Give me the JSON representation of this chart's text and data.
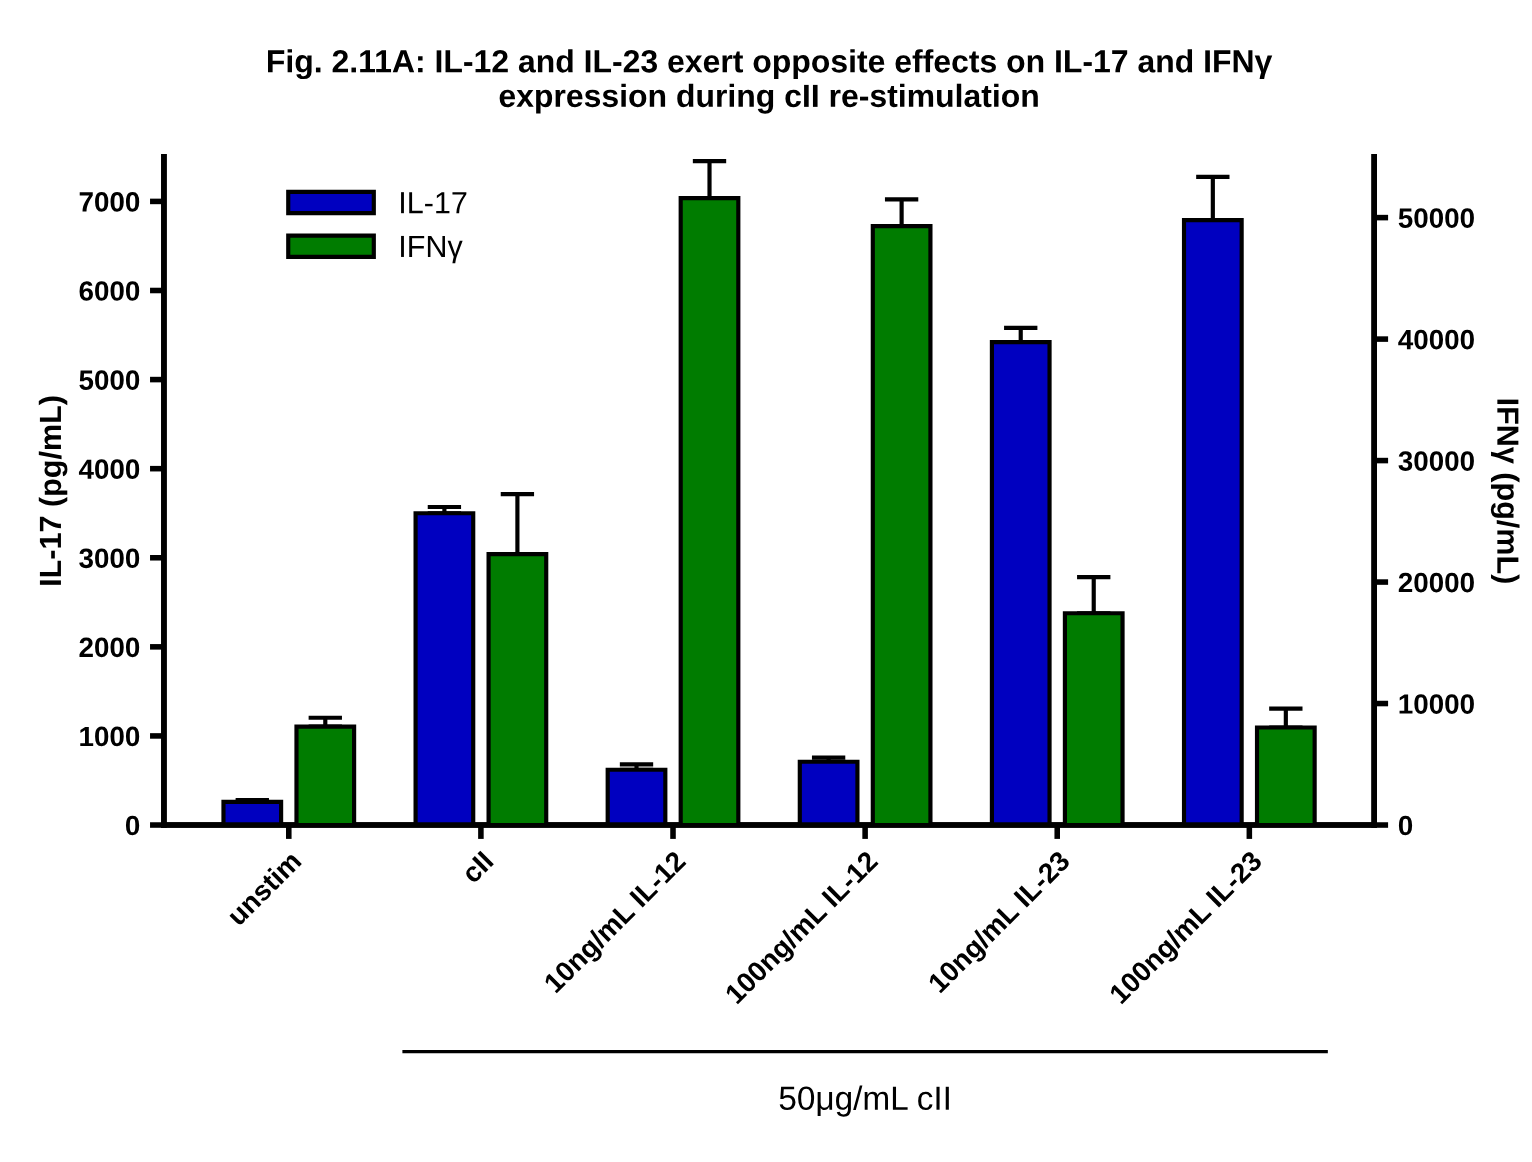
{
  "chart_data": {
    "type": "bar",
    "title": "Fig. 2.11A: IL-12 and IL-23 exert opposite effects on IL-17 and IFNγ\nexpression during cII re-stimulation",
    "categories": [
      "unstim",
      "cII",
      "10ng/mL IL-12",
      "100ng/mL IL-12",
      "10ng/mL IL-23",
      "100ng/mL IL-23"
    ],
    "series": [
      {
        "name": "IL-17",
        "color": "#0000c0",
        "values": [
          260,
          3500,
          620,
          710,
          5420,
          6790
        ],
        "errors": [
          [
            260,
            280
          ],
          [
            3500,
            3570
          ],
          [
            620,
            680
          ],
          [
            710,
            757
          ],
          [
            5420,
            5580
          ],
          [
            6790,
            7275
          ]
        ]
      },
      {
        "name": "IFNγ",
        "color": "#007c00",
        "axis": "y2",
        "values": [
          8100,
          22300,
          51600,
          49300,
          17430,
          8030
        ],
        "errors": [
          [
            8100,
            8830
          ],
          [
            22300,
            27240
          ],
          [
            51600,
            54650
          ],
          [
            49300,
            51500
          ],
          [
            17430,
            20410
          ],
          [
            8030,
            9580
          ]
        ]
      }
    ],
    "ylabel": "IL-17 (pg/mL)",
    "y2label": "IFNγ (pg/mL)",
    "ylim": [
      0,
      7500
    ],
    "yticks": [
      0,
      1000,
      2000,
      3000,
      4000,
      5000,
      6000,
      7000
    ],
    "y2lim": [
      0,
      55000
    ],
    "y2ticks": [
      0,
      10000,
      20000,
      30000,
      40000,
      50000
    ],
    "annotations": [
      "50μg/mL cII"
    ],
    "legend": "top left",
    "grid": false
  }
}
